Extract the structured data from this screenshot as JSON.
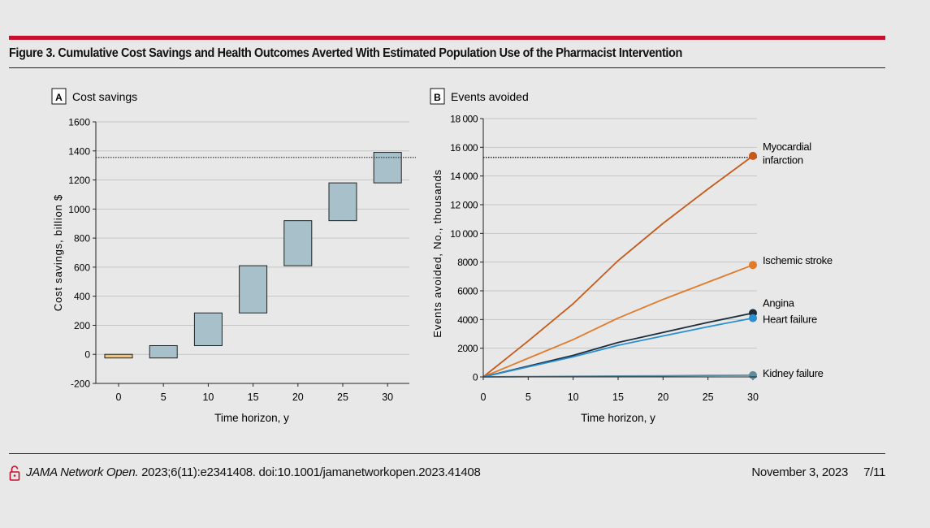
{
  "figure": {
    "title": "Figure 3. Cumulative Cost Savings and Health Outcomes Averted With Estimated Population Use of the Pharmacist Intervention"
  },
  "colors": {
    "accent_rule": "#c8102e",
    "bar_fill": "#a7c0c9",
    "bar_baseline_fill": "#f2c477",
    "myocardial_infarction": "#c65a1a",
    "ischemic_stroke": "#e07b2b",
    "angina": "#1b2c3a",
    "heart_failure": "#2a8fd0",
    "kidney_failure": "#5e8ca0"
  },
  "chart_data": [
    {
      "type": "bar",
      "panel_letter": "A",
      "panel_title": "Cost savings",
      "xlabel": "Time horizon, y",
      "ylabel": "Cost savings, billion $",
      "categories": [
        "0",
        "5",
        "10",
        "15",
        "20",
        "25",
        "30"
      ],
      "floating_ranges": [
        [
          -25,
          0
        ],
        [
          -25,
          60
        ],
        [
          60,
          285
        ],
        [
          285,
          610
        ],
        [
          610,
          920
        ],
        [
          920,
          1180
        ],
        [
          1180,
          1390
        ]
      ],
      "reference_line": 1355,
      "ylim": [
        -200,
        1600
      ],
      "yticks": [
        -200,
        0,
        200,
        400,
        600,
        800,
        1000,
        1200,
        1400,
        1600
      ],
      "ytick_labels": [
        "-200",
        "0",
        "200",
        "400",
        "600",
        "800",
        "1000",
        "1200",
        "1400",
        "1600"
      ],
      "grid": true
    },
    {
      "type": "line",
      "panel_letter": "B",
      "panel_title": "Events avoided",
      "xlabel": "Time horizon, y",
      "ylabel": "Events avoided, No., thousands",
      "x": [
        0,
        5,
        10,
        15,
        20,
        25,
        30
      ],
      "xticks": [
        "0",
        "5",
        "10",
        "15",
        "20",
        "25",
        "30"
      ],
      "ylim": [
        0,
        18000
      ],
      "yticks": [
        0,
        2000,
        4000,
        6000,
        8000,
        10000,
        12000,
        14000,
        16000,
        18000
      ],
      "ytick_labels": [
        "0",
        "2000",
        "4000",
        "6000",
        "8000",
        "10 000",
        "12 000",
        "14 000",
        "16 000",
        "18 000"
      ],
      "reference_line": 15300,
      "grid": true,
      "series": [
        {
          "name": "Myocardial infarction",
          "label_lines": [
            "Myocardial",
            "infarction"
          ],
          "values": [
            0,
            2500,
            5100,
            8100,
            10700,
            13100,
            15400
          ],
          "color_key": "myocardial_infarction"
        },
        {
          "name": "Ischemic stroke",
          "label_lines": [
            "Ischemic stroke"
          ],
          "values": [
            0,
            1300,
            2600,
            4100,
            5400,
            6600,
            7800
          ],
          "color_key": "ischemic_stroke"
        },
        {
          "name": "Angina",
          "label_lines": [
            "Angina"
          ],
          "values": [
            0,
            750,
            1500,
            2400,
            3100,
            3800,
            4450
          ],
          "color_key": "angina"
        },
        {
          "name": "Heart failure",
          "label_lines": [
            "Heart failure"
          ],
          "values": [
            0,
            700,
            1400,
            2200,
            2850,
            3500,
            4100
          ],
          "color_key": "heart_failure"
        },
        {
          "name": "Kidney failure",
          "label_lines": [
            "Kidney failure"
          ],
          "values": [
            0,
            20,
            40,
            60,
            80,
            100,
            120
          ],
          "color_key": "kidney_failure"
        }
      ]
    }
  ],
  "footer": {
    "journal": "JAMA Network Open.",
    "citation": " 2023;6(11):e2341408. doi:10.1001/jamanetworkopen.2023.41408",
    "date": "November 3, 2023",
    "page": "7/11",
    "icon": "lock-icon"
  }
}
